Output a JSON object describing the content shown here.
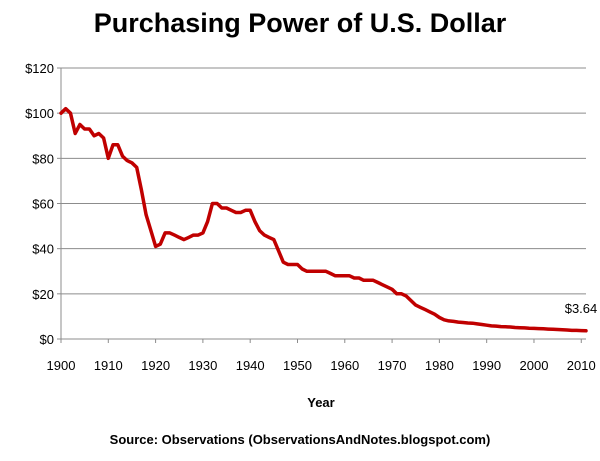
{
  "chart_data": {
    "type": "line",
    "title": "Purchasing Power of U.S. Dollar",
    "xlabel": "Year",
    "ylabel": "",
    "xlim": [
      1900,
      2011
    ],
    "ylim": [
      0,
      120
    ],
    "x_ticks": [
      1900,
      1910,
      1920,
      1930,
      1940,
      1950,
      1960,
      1970,
      1980,
      1990,
      2000,
      2010
    ],
    "y_ticks": [
      0,
      20,
      40,
      60,
      80,
      100,
      120
    ],
    "y_tick_labels": [
      "$0",
      "$20",
      "$40",
      "$60",
      "$80",
      "$100",
      "$120"
    ],
    "grid": "horizontal",
    "series_color": "#c00000",
    "end_label": "$3.64",
    "series": [
      {
        "x": [
          1900,
          1901,
          1902,
          1903,
          1904,
          1905,
          1906,
          1907,
          1908,
          1909,
          1910,
          1911,
          1912,
          1913,
          1914,
          1915,
          1916,
          1917,
          1918,
          1919,
          1920,
          1921,
          1922,
          1923,
          1924,
          1925,
          1926,
          1927,
          1928,
          1929,
          1930,
          1931,
          1932,
          1933,
          1934,
          1935,
          1936,
          1937,
          1938,
          1939,
          1940,
          1941,
          1942,
          1943,
          1944,
          1945,
          1946,
          1947,
          1948,
          1949,
          1950,
          1951,
          1952,
          1953,
          1954,
          1955,
          1956,
          1957,
          1958,
          1959,
          1960,
          1961,
          1962,
          1963,
          1964,
          1965,
          1966,
          1967,
          1968,
          1969,
          1970,
          1971,
          1972,
          1973,
          1974,
          1975,
          1976,
          1977,
          1978,
          1979,
          1980,
          1981,
          1982,
          1983,
          1984,
          1985,
          1986,
          1987,
          1988,
          1989,
          1990,
          1991,
          1992,
          1993,
          1994,
          1995,
          1996,
          1997,
          1998,
          1999,
          2000,
          2001,
          2002,
          2003,
          2004,
          2005,
          2006,
          2007,
          2008,
          2009,
          2010,
          2011
        ],
        "values": [
          100,
          102,
          100,
          91,
          95,
          93,
          93,
          90,
          91,
          89,
          80,
          86,
          86,
          81,
          79,
          78,
          76,
          66,
          55,
          48,
          41,
          42,
          47,
          47,
          46,
          45,
          44,
          45,
          46,
          46,
          47,
          52,
          60,
          60,
          58,
          58,
          57,
          56,
          56,
          57,
          57,
          52,
          48,
          46,
          45,
          44,
          39,
          34,
          33,
          33,
          33,
          31,
          30,
          30,
          30,
          30,
          30,
          29,
          28,
          28,
          28,
          28,
          27,
          27,
          26,
          26,
          26,
          25,
          24,
          23,
          22,
          20,
          20,
          19,
          17,
          15,
          14,
          13,
          12,
          11,
          9.5,
          8.5,
          8,
          7.8,
          7.5,
          7.3,
          7.1,
          7,
          6.7,
          6.4,
          6.1,
          5.8,
          5.7,
          5.5,
          5.4,
          5.3,
          5.1,
          5,
          4.9,
          4.8,
          4.7,
          4.6,
          4.5,
          4.4,
          4.3,
          4.2,
          4.1,
          4,
          3.8,
          3.8,
          3.7,
          3.64
        ]
      }
    ]
  },
  "source_note": "Source: Observations  (ObservationsAndNotes.blogspot.com)"
}
